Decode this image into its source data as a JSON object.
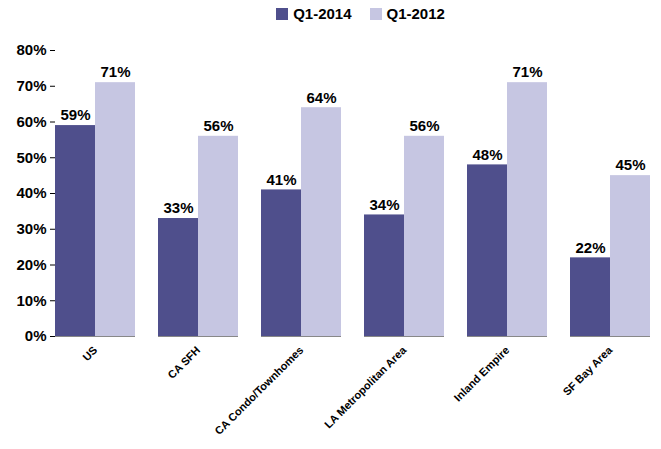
{
  "chart_data": {
    "type": "bar",
    "categories": [
      "US",
      "CA SFH",
      "CA Condo/Townhomes",
      "LA Metropolitan Area",
      "Inland Empire",
      "SF Bay Area"
    ],
    "series": [
      {
        "name": "Q1-2014",
        "color": "#4f4f8c",
        "values": [
          59,
          33,
          41,
          34,
          48,
          22
        ],
        "value_labels": [
          "59%",
          "33%",
          "41%",
          "34%",
          "48%",
          "22%"
        ]
      },
      {
        "name": "Q1-2012",
        "color": "#c6c6e2",
        "values": [
          71,
          56,
          64,
          56,
          71,
          45
        ],
        "value_labels": [
          "71%",
          "56%",
          "64%",
          "56%",
          "71%",
          "45%"
        ]
      }
    ],
    "ylim": [
      0,
      80
    ],
    "yticks": [
      {
        "value": 0,
        "label": "0%"
      },
      {
        "value": 10,
        "label": "10%"
      },
      {
        "value": 20,
        "label": "20%"
      },
      {
        "value": 30,
        "label": "30%"
      },
      {
        "value": 40,
        "label": "40%"
      },
      {
        "value": 50,
        "label": "50%"
      },
      {
        "value": 60,
        "label": "60%"
      },
      {
        "value": 70,
        "label": "70%"
      },
      {
        "value": 80,
        "label": "80%"
      }
    ],
    "grid": false,
    "legend": "top",
    "data_labels": true
  }
}
